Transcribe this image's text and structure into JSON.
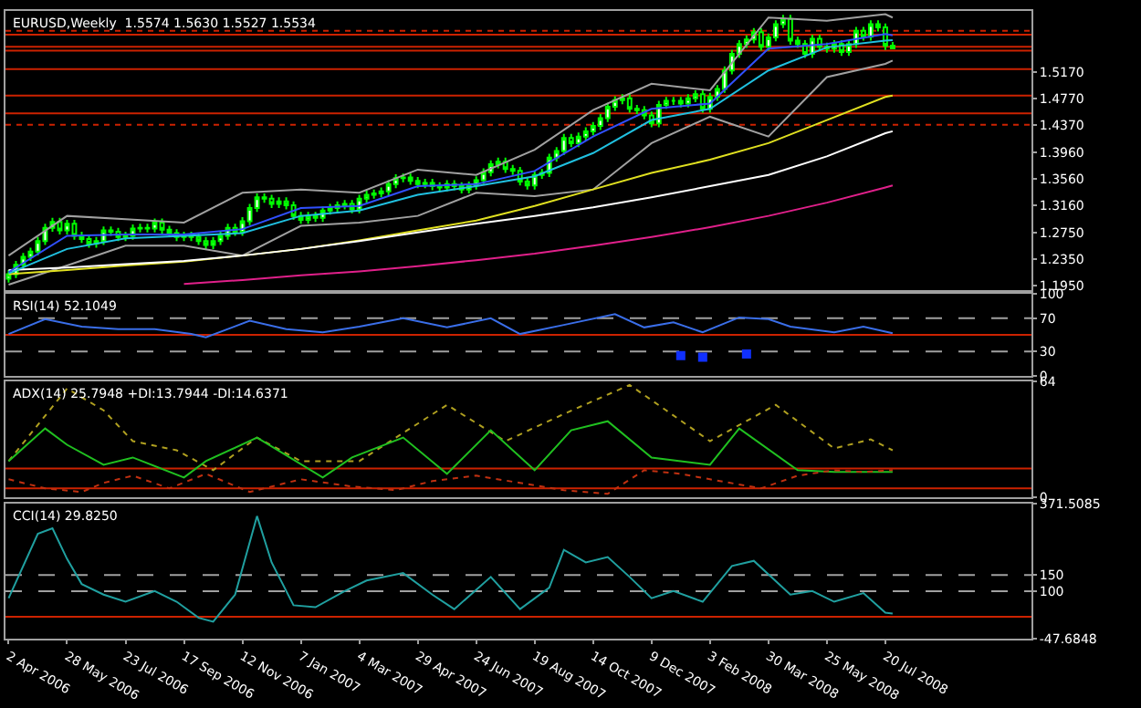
{
  "chart_data": [
    {
      "type": "candlestick",
      "title": "EURUSD,Weekly  1.5574 1.5630 1.5527 1.5534",
      "color": "#00ff00",
      "tick_labels": "y",
      "xlim": [
        "2006-03-30",
        "2008-12-07"
      ],
      "ylim": [
        1.1875,
        1.61
      ],
      "yticks": [
        {
          "value": 1.195,
          "label": "1.1950"
        },
        {
          "value": 1.235,
          "label": "1.2350"
        },
        {
          "value": 1.275,
          "label": "1.2750"
        },
        {
          "value": 1.316,
          "label": "1.3160"
        },
        {
          "value": 1.356,
          "label": "1.3560"
        },
        {
          "value": 1.396,
          "label": "1.3960"
        },
        {
          "value": 1.437,
          "label": "1.4370"
        },
        {
          "value": 1.477,
          "label": "1.4770"
        },
        {
          "value": 1.517,
          "label": "1.5170"
        }
      ],
      "x": [
        "2006-04-02",
        "2006-04-09",
        "2006-04-16",
        "2006-04-23",
        "2006-04-30",
        "2006-05-07",
        "2006-05-14",
        "2006-05-21",
        "2006-05-28",
        "2006-06-04",
        "2006-06-11",
        "2006-06-18",
        "2006-06-25",
        "2006-07-02",
        "2006-07-09",
        "2006-07-16",
        "2006-07-23",
        "2006-07-30",
        "2006-08-06",
        "2006-08-13",
        "2006-08-20",
        "2006-08-27",
        "2006-09-03",
        "2006-09-10",
        "2006-09-17",
        "2006-09-24",
        "2006-10-01",
        "2006-10-08",
        "2006-10-15",
        "2006-10-22",
        "2006-10-29",
        "2006-11-05",
        "2006-11-12",
        "2006-11-19",
        "2006-11-26",
        "2006-12-03",
        "2006-12-10",
        "2006-12-17",
        "2006-12-24",
        "2006-12-31",
        "2007-01-07",
        "2007-01-14",
        "2007-01-21",
        "2007-01-28",
        "2007-02-04",
        "2007-02-11",
        "2007-02-18",
        "2007-02-25",
        "2007-03-04",
        "2007-03-11",
        "2007-03-18",
        "2007-03-25",
        "2007-04-01",
        "2007-04-08",
        "2007-04-15",
        "2007-04-22",
        "2007-04-29",
        "2007-05-06",
        "2007-05-13",
        "2007-05-20",
        "2007-05-27",
        "2007-06-03",
        "2007-06-10",
        "2007-06-17",
        "2007-06-24",
        "2007-07-01",
        "2007-07-08",
        "2007-07-15",
        "2007-07-22",
        "2007-07-29",
        "2007-08-05",
        "2007-08-12",
        "2007-08-19",
        "2007-08-26",
        "2007-09-02",
        "2007-09-09",
        "2007-09-16",
        "2007-09-23",
        "2007-09-30",
        "2007-10-07",
        "2007-10-14",
        "2007-10-21",
        "2007-10-28",
        "2007-11-04",
        "2007-11-11",
        "2007-11-18",
        "2007-11-25",
        "2007-12-02",
        "2007-12-09",
        "2007-12-16",
        "2007-12-23",
        "2007-12-30",
        "2008-01-06",
        "2008-01-13",
        "2008-01-20",
        "2008-01-27",
        "2008-02-03",
        "2008-02-10",
        "2008-02-17",
        "2008-02-24",
        "2008-03-02",
        "2008-03-09",
        "2008-03-16",
        "2008-03-23",
        "2008-03-30",
        "2008-04-06",
        "2008-04-13",
        "2008-04-20",
        "2008-04-27",
        "2008-05-04",
        "2008-05-11",
        "2008-05-18",
        "2008-05-25",
        "2008-06-01",
        "2008-06-08",
        "2008-06-15",
        "2008-06-22",
        "2008-06-29",
        "2008-07-06",
        "2008-07-13",
        "2008-07-20",
        "2008-07-27"
      ],
      "ohlc": [
        [
          1.205,
          1.218,
          1.199,
          1.212
        ],
        [
          1.212,
          1.232,
          1.206,
          1.226
        ],
        [
          1.226,
          1.244,
          1.22,
          1.238
        ],
        [
          1.238,
          1.252,
          1.232,
          1.246
        ],
        [
          1.246,
          1.268,
          1.24,
          1.262
        ],
        [
          1.262,
          1.288,
          1.256,
          1.282
        ],
        [
          1.282,
          1.297,
          1.276,
          1.291
        ],
        [
          1.291,
          1.297,
          1.272,
          1.278
        ],
        [
          1.278,
          1.294,
          1.272,
          1.288
        ],
        [
          1.288,
          1.294,
          1.264,
          1.27
        ],
        [
          1.27,
          1.276,
          1.259,
          1.265
        ],
        [
          1.265,
          1.271,
          1.252,
          1.258
        ],
        [
          1.258,
          1.268,
          1.252,
          1.262
        ],
        [
          1.262,
          1.284,
          1.256,
          1.278
        ],
        [
          1.278,
          1.284,
          1.27,
          1.276
        ],
        [
          1.276,
          1.282,
          1.262,
          1.268
        ],
        [
          1.268,
          1.276,
          1.262,
          1.27
        ],
        [
          1.27,
          1.287,
          1.264,
          1.281
        ],
        [
          1.281,
          1.288,
          1.275,
          1.282
        ],
        [
          1.282,
          1.288,
          1.275,
          1.281
        ],
        [
          1.281,
          1.296,
          1.275,
          1.29
        ],
        [
          1.29,
          1.296,
          1.273,
          1.279
        ],
        [
          1.279,
          1.285,
          1.268,
          1.274
        ],
        [
          1.274,
          1.28,
          1.262,
          1.268
        ],
        [
          1.268,
          1.276,
          1.262,
          1.27
        ],
        [
          1.27,
          1.276,
          1.262,
          1.268
        ],
        [
          1.268,
          1.274,
          1.256,
          1.262
        ],
        [
          1.262,
          1.268,
          1.25,
          1.256
        ],
        [
          1.256,
          1.268,
          1.25,
          1.262
        ],
        [
          1.262,
          1.276,
          1.256,
          1.27
        ],
        [
          1.27,
          1.288,
          1.264,
          1.282
        ],
        [
          1.282,
          1.288,
          1.27,
          1.276
        ],
        [
          1.276,
          1.298,
          1.27,
          1.292
        ],
        [
          1.292,
          1.318,
          1.286,
          1.312
        ],
        [
          1.312,
          1.334,
          1.306,
          1.328
        ],
        [
          1.328,
          1.334,
          1.32,
          1.326
        ],
        [
          1.326,
          1.332,
          1.312,
          1.318
        ],
        [
          1.318,
          1.328,
          1.312,
          1.322
        ],
        [
          1.322,
          1.328,
          1.31,
          1.316
        ],
        [
          1.316,
          1.322,
          1.294,
          1.3
        ],
        [
          1.3,
          1.306,
          1.288,
          1.294
        ],
        [
          1.294,
          1.306,
          1.288,
          1.3
        ],
        [
          1.3,
          1.306,
          1.291,
          1.297
        ],
        [
          1.297,
          1.314,
          1.291,
          1.308
        ],
        [
          1.308,
          1.318,
          1.302,
          1.312
        ],
        [
          1.312,
          1.322,
          1.306,
          1.316
        ],
        [
          1.316,
          1.324,
          1.31,
          1.318
        ],
        [
          1.318,
          1.324,
          1.304,
          1.31
        ],
        [
          1.31,
          1.332,
          1.304,
          1.326
        ],
        [
          1.326,
          1.338,
          1.32,
          1.332
        ],
        [
          1.332,
          1.34,
          1.326,
          1.334
        ],
        [
          1.334,
          1.343,
          1.328,
          1.337
        ],
        [
          1.337,
          1.354,
          1.331,
          1.348
        ],
        [
          1.348,
          1.363,
          1.342,
          1.357
        ],
        [
          1.357,
          1.364,
          1.351,
          1.358
        ],
        [
          1.358,
          1.364,
          1.347,
          1.353
        ],
        [
          1.353,
          1.359,
          1.342,
          1.348
        ],
        [
          1.348,
          1.356,
          1.342,
          1.35
        ],
        [
          1.35,
          1.356,
          1.339,
          1.345
        ],
        [
          1.345,
          1.351,
          1.337,
          1.343
        ],
        [
          1.343,
          1.354,
          1.337,
          1.348
        ],
        [
          1.348,
          1.354,
          1.339,
          1.345
        ],
        [
          1.345,
          1.351,
          1.334,
          1.34
        ],
        [
          1.34,
          1.352,
          1.334,
          1.346
        ],
        [
          1.346,
          1.36,
          1.34,
          1.354
        ],
        [
          1.354,
          1.372,
          1.348,
          1.366
        ],
        [
          1.366,
          1.384,
          1.36,
          1.378
        ],
        [
          1.378,
          1.388,
          1.372,
          1.382
        ],
        [
          1.382,
          1.388,
          1.365,
          1.371
        ],
        [
          1.371,
          1.377,
          1.362,
          1.368
        ],
        [
          1.368,
          1.374,
          1.346,
          1.352
        ],
        [
          1.352,
          1.358,
          1.34,
          1.346
        ],
        [
          1.346,
          1.368,
          1.34,
          1.362
        ],
        [
          1.362,
          1.371,
          1.356,
          1.365
        ],
        [
          1.365,
          1.394,
          1.359,
          1.388
        ],
        [
          1.388,
          1.404,
          1.382,
          1.398
        ],
        [
          1.398,
          1.424,
          1.392,
          1.418
        ],
        [
          1.418,
          1.424,
          1.404,
          1.41
        ],
        [
          1.41,
          1.426,
          1.404,
          1.42
        ],
        [
          1.42,
          1.434,
          1.414,
          1.428
        ],
        [
          1.428,
          1.442,
          1.422,
          1.436
        ],
        [
          1.436,
          1.454,
          1.43,
          1.448
        ],
        [
          1.448,
          1.471,
          1.442,
          1.465
        ],
        [
          1.465,
          1.481,
          1.459,
          1.475
        ],
        [
          1.475,
          1.484,
          1.469,
          1.478
        ],
        [
          1.478,
          1.484,
          1.456,
          1.462
        ],
        [
          1.462,
          1.468,
          1.454,
          1.46
        ],
        [
          1.46,
          1.466,
          1.446,
          1.452
        ],
        [
          1.452,
          1.458,
          1.434,
          1.44
        ],
        [
          1.44,
          1.474,
          1.434,
          1.468
        ],
        [
          1.468,
          1.48,
          1.462,
          1.474
        ],
        [
          1.474,
          1.48,
          1.468,
          1.474
        ],
        [
          1.474,
          1.48,
          1.464,
          1.47
        ],
        [
          1.47,
          1.484,
          1.464,
          1.478
        ],
        [
          1.478,
          1.49,
          1.472,
          1.484
        ],
        [
          1.484,
          1.49,
          1.456,
          1.462
        ],
        [
          1.462,
          1.486,
          1.456,
          1.48
        ],
        [
          1.48,
          1.498,
          1.474,
          1.492
        ],
        [
          1.492,
          1.526,
          1.486,
          1.52
        ],
        [
          1.52,
          1.551,
          1.514,
          1.545
        ],
        [
          1.545,
          1.566,
          1.539,
          1.56
        ],
        [
          1.56,
          1.573,
          1.554,
          1.567
        ],
        [
          1.567,
          1.584,
          1.561,
          1.578
        ],
        [
          1.578,
          1.584,
          1.55,
          1.556
        ],
        [
          1.556,
          1.576,
          1.55,
          1.57
        ],
        [
          1.57,
          1.596,
          1.564,
          1.59
        ],
        [
          1.59,
          1.604,
          1.584,
          1.598
        ],
        [
          1.598,
          1.604,
          1.559,
          1.565
        ],
        [
          1.565,
          1.571,
          1.554,
          1.56
        ],
        [
          1.56,
          1.566,
          1.539,
          1.545
        ],
        [
          1.545,
          1.574,
          1.539,
          1.568
        ],
        [
          1.568,
          1.574,
          1.55,
          1.556
        ],
        [
          1.556,
          1.562,
          1.547,
          1.553
        ],
        [
          1.553,
          1.566,
          1.547,
          1.56
        ],
        [
          1.56,
          1.566,
          1.542,
          1.548
        ],
        [
          1.548,
          1.566,
          1.542,
          1.56
        ],
        [
          1.56,
          1.586,
          1.554,
          1.58
        ],
        [
          1.58,
          1.586,
          1.565,
          1.571
        ],
        [
          1.571,
          1.596,
          1.565,
          1.59
        ],
        [
          1.59,
          1.596,
          1.579,
          1.585
        ],
        [
          1.585,
          1.591,
          1.551,
          1.5574
        ],
        [
          1.5574,
          1.563,
          1.5527,
          1.5534
        ]
      ],
      "series": [
        {
          "type": "line",
          "color": "#a0a0a0",
          "x": [
            "2006-04-02",
            "2006-05-28",
            "2006-07-23",
            "2006-09-17",
            "2006-11-12",
            "2007-01-07",
            "2007-03-04",
            "2007-04-29",
            "2007-06-24",
            "2007-08-19",
            "2007-10-14",
            "2007-12-09",
            "2008-02-03",
            "2008-03-30",
            "2008-05-25",
            "2008-07-20",
            "2008-07-27"
          ],
          "values": [
            1.24,
            1.3,
            1.295,
            1.29,
            1.335,
            1.34,
            1.335,
            1.37,
            1.362,
            1.4,
            1.46,
            1.5,
            1.49,
            1.6,
            1.595,
            1.605,
            1.6
          ]
        },
        {
          "type": "line",
          "color": "#a0a0a0",
          "x": [
            "2006-04-02",
            "2006-05-28",
            "2006-07-23",
            "2006-09-17",
            "2006-11-12",
            "2007-01-07",
            "2007-03-04",
            "2007-04-29",
            "2007-06-24",
            "2007-08-19",
            "2007-10-14",
            "2007-12-09",
            "2008-02-03",
            "2008-03-30",
            "2008-05-25",
            "2008-07-20",
            "2008-07-27"
          ],
          "values": [
            1.196,
            1.225,
            1.255,
            1.255,
            1.24,
            1.285,
            1.29,
            1.3,
            1.335,
            1.33,
            1.34,
            1.41,
            1.45,
            1.42,
            1.51,
            1.53,
            1.535
          ]
        },
        {
          "type": "line",
          "color": "#e0e020",
          "x": [
            "2006-04-02",
            "2006-05-28",
            "2006-07-23",
            "2006-09-17",
            "2006-11-12",
            "2007-01-07",
            "2007-03-04",
            "2007-04-29",
            "2007-06-24",
            "2007-08-19",
            "2007-10-14",
            "2007-12-09",
            "2008-02-03",
            "2008-03-30",
            "2008-05-25",
            "2008-07-20",
            "2008-07-27"
          ],
          "values": [
            1.212,
            1.218,
            1.225,
            1.231,
            1.24,
            1.25,
            1.263,
            1.278,
            1.293,
            1.315,
            1.34,
            1.365,
            1.385,
            1.41,
            1.445,
            1.48,
            1.482
          ]
        },
        {
          "type": "line",
          "color": "#ffffff",
          "x": [
            "2006-04-02",
            "2006-05-28",
            "2006-07-23",
            "2006-09-17",
            "2006-11-12",
            "2007-01-07",
            "2007-03-04",
            "2007-04-29",
            "2007-06-24",
            "2007-08-19",
            "2007-10-14",
            "2007-12-09",
            "2008-02-03",
            "2008-03-30",
            "2008-05-25",
            "2008-07-20",
            "2008-07-27"
          ],
          "values": [
            1.218,
            1.222,
            1.227,
            1.232,
            1.24,
            1.25,
            1.262,
            1.275,
            1.288,
            1.3,
            1.313,
            1.328,
            1.345,
            1.362,
            1.39,
            1.425,
            1.428
          ]
        },
        {
          "type": "line",
          "color": "#e0208a",
          "x": [
            "2006-09-17",
            "2006-11-12",
            "2007-01-07",
            "2007-03-04",
            "2007-04-29",
            "2007-06-24",
            "2007-08-19",
            "2007-10-14",
            "2007-12-09",
            "2008-02-03",
            "2008-03-30",
            "2008-05-25",
            "2008-07-20",
            "2008-07-27"
          ],
          "values": [
            1.197,
            1.203,
            1.21,
            1.216,
            1.224,
            1.233,
            1.243,
            1.255,
            1.268,
            1.283,
            1.3,
            1.32,
            1.343,
            1.346
          ]
        },
        {
          "type": "line",
          "color": "#20c0e0",
          "x": [
            "2006-04-02",
            "2006-05-28",
            "2006-07-23",
            "2006-09-17",
            "2006-11-12",
            "2007-01-07",
            "2007-03-04",
            "2007-04-29",
            "2007-06-24",
            "2007-08-19",
            "2007-10-14",
            "2007-12-09",
            "2008-02-03",
            "2008-03-30",
            "2008-05-25",
            "2008-07-20",
            "2008-07-27"
          ],
          "values": [
            1.213,
            1.25,
            1.266,
            1.27,
            1.274,
            1.3,
            1.308,
            1.332,
            1.345,
            1.36,
            1.395,
            1.445,
            1.462,
            1.52,
            1.555,
            1.565,
            1.566
          ]
        },
        {
          "type": "line",
          "color": "#3050ff",
          "x": [
            "2006-04-02",
            "2006-05-28",
            "2006-07-23",
            "2006-09-17",
            "2006-11-12",
            "2007-01-07",
            "2007-03-04",
            "2007-04-29",
            "2007-06-24",
            "2007-08-19",
            "2007-10-14",
            "2007-12-09",
            "2008-02-03",
            "2008-03-30",
            "2008-05-25",
            "2008-07-20",
            "2008-07-27"
          ],
          "values": [
            1.215,
            1.27,
            1.272,
            1.272,
            1.28,
            1.312,
            1.315,
            1.345,
            1.348,
            1.368,
            1.42,
            1.462,
            1.47,
            1.553,
            1.56,
            1.575,
            1.573
          ]
        }
      ],
      "ref_lines": [
        {
          "axis": "y",
          "value": 1.58,
          "color": "#cc2200",
          "line_style": "dotted"
        },
        {
          "axis": "y",
          "value": 1.574,
          "color": "#cc2200"
        },
        {
          "axis": "y",
          "value": 1.556,
          "color": "#cc2200"
        },
        {
          "axis": "y",
          "value": 1.55,
          "color": "#cc2200"
        },
        {
          "axis": "y",
          "value": 1.522,
          "color": "#cc2200"
        },
        {
          "axis": "y",
          "value": 1.482,
          "color": "#cc2200"
        },
        {
          "axis": "y",
          "value": 1.455,
          "color": "#cc2200"
        },
        {
          "axis": "y",
          "value": 1.438,
          "color": "#cc2200",
          "line_style": "dotted"
        }
      ]
    },
    {
      "type": "line",
      "title": "RSI(14) 52.1049",
      "tick_labels": "y",
      "xlim": [
        "2006-03-30",
        "2008-12-07"
      ],
      "ylim": [
        0,
        100
      ],
      "yticks": [
        0,
        30,
        70,
        100
      ],
      "series": [
        {
          "color": "#3a6ee8",
          "x": [
            "2006-04-02",
            "2006-05-07",
            "2006-06-11",
            "2006-07-16",
            "2006-08-20",
            "2006-09-24",
            "2006-10-08",
            "2006-11-19",
            "2006-12-24",
            "2007-01-28",
            "2007-03-04",
            "2007-04-15",
            "2007-05-27",
            "2007-07-08",
            "2007-08-05",
            "2007-09-16",
            "2007-11-04",
            "2007-12-02",
            "2007-12-30",
            "2008-01-27",
            "2008-03-02",
            "2008-03-30",
            "2008-04-20",
            "2008-06-01",
            "2008-06-29",
            "2008-07-27"
          ],
          "values": [
            51,
            69,
            60,
            57,
            57,
            51,
            47,
            67,
            57,
            53,
            60,
            70,
            59,
            70,
            51,
            62,
            75,
            59,
            65,
            53,
            71,
            69,
            60,
            53,
            60,
            52
          ]
        },
        {
          "type": "scatter",
          "marker": "square",
          "color": "#1030ff",
          "x": [
            "2008-01-06",
            "2008-01-27",
            "2008-03-09"
          ],
          "values": [
            25,
            23,
            27
          ]
        }
      ],
      "ref_lines": [
        {
          "axis": "y",
          "value": 70,
          "color": "#a0a0a0",
          "line_style": "dashed"
        },
        {
          "axis": "y",
          "value": 30,
          "color": "#a0a0a0",
          "line_style": "dashed"
        },
        {
          "axis": "y",
          "value": 50,
          "color": "#cc2200"
        }
      ]
    },
    {
      "type": "line",
      "title": "ADX(14) 25.7948 +DI:13.7944 -DI:14.6371",
      "tick_labels": "y",
      "xlim": [
        "2006-03-30",
        "2008-12-07"
      ],
      "ylim": [
        0,
        64
      ],
      "yticks": [
        0,
        64
      ],
      "series": [
        {
          "color": "#b0a020",
          "line_style": "dotted",
          "x": [
            "2006-04-02",
            "2006-05-28",
            "2006-07-02",
            "2006-07-30",
            "2006-09-10",
            "2006-10-15",
            "2006-11-26",
            "2007-01-07",
            "2007-03-04",
            "2007-05-27",
            "2007-07-22",
            "2007-09-16",
            "2007-11-18",
            "2007-12-23",
            "2008-02-03",
            "2008-04-06",
            "2008-06-01",
            "2008-07-06",
            "2008-07-27"
          ],
          "values": [
            20,
            60,
            48,
            31,
            26,
            15,
            33,
            20,
            20,
            51,
            31,
            46,
            62,
            48,
            31,
            51,
            27,
            32,
            26
          ]
        },
        {
          "color": "#20c020",
          "x": [
            "2006-04-02",
            "2006-05-07",
            "2006-05-28",
            "2006-07-02",
            "2006-07-30",
            "2006-09-17",
            "2006-10-08",
            "2006-11-26",
            "2007-01-28",
            "2007-02-25",
            "2007-04-15",
            "2007-05-27",
            "2007-07-08",
            "2007-08-19",
            "2007-09-23",
            "2007-10-28",
            "2007-12-09",
            "2008-02-03",
            "2008-03-02",
            "2008-04-27",
            "2008-06-01",
            "2008-07-27"
          ],
          "values": [
            20,
            38,
            29,
            18,
            22,
            11,
            20,
            33,
            11,
            22,
            33,
            13,
            37,
            15,
            37,
            42,
            22,
            18,
            38,
            15,
            14,
            14
          ]
        },
        {
          "color": "#c03010",
          "line_style": "dotted",
          "x": [
            "2006-04-02",
            "2006-05-07",
            "2006-06-11",
            "2006-07-02",
            "2006-07-30",
            "2006-09-03",
            "2006-10-08",
            "2006-11-19",
            "2007-01-07",
            "2007-02-25",
            "2007-04-08",
            "2007-05-13",
            "2007-06-24",
            "2007-08-05",
            "2007-09-16",
            "2007-10-28",
            "2007-12-02",
            "2008-01-06",
            "2008-02-03",
            "2008-03-23",
            "2008-04-27",
            "2008-06-01",
            "2008-06-29",
            "2008-07-27"
          ],
          "values": [
            10,
            5,
            3,
            8,
            12,
            5,
            13,
            3,
            10,
            6,
            4,
            9,
            12,
            8,
            4,
            2,
            15,
            13,
            10,
            5,
            12,
            15,
            14,
            15
          ]
        }
      ],
      "ref_lines": [
        {
          "axis": "y",
          "value": 16,
          "color": "#cc2200"
        },
        {
          "axis": "y",
          "value": 5,
          "color": "#cc2200"
        }
      ]
    },
    {
      "type": "line",
      "title": "CCI(14) 29.8250",
      "xlim": [
        "2006-03-30",
        "2008-12-07"
      ],
      "ylim": [
        -47.6848,
        371.5085
      ],
      "yticks": [
        {
          "value": -47.6848,
          "label": "-47.6848"
        },
        100,
        150,
        {
          "value": 371.5085,
          "label": "371.5085"
        }
      ],
      "xticks": [
        {
          "value": "2006-04-02",
          "label": "2 Apr 2006"
        },
        {
          "value": "2006-05-28",
          "label": "28 May 2006"
        },
        {
          "value": "2006-07-23",
          "label": "23 Jul 2006"
        },
        {
          "value": "2006-09-17",
          "label": "17 Sep 2006"
        },
        {
          "value": "2006-11-12",
          "label": "12 Nov 2006"
        },
        {
          "value": "2007-01-07",
          "label": "7 Jan 2007"
        },
        {
          "value": "2007-03-04",
          "label": "4 Mar 2007"
        },
        {
          "value": "2007-04-29",
          "label": "29 Apr 2007"
        },
        {
          "value": "2007-06-24",
          "label": "24 Jun 2007"
        },
        {
          "value": "2007-08-19",
          "label": "19 Aug 2007"
        },
        {
          "value": "2007-10-14",
          "label": "14 Oct 2007"
        },
        {
          "value": "2007-12-09",
          "label": "9 Dec 2007"
        },
        {
          "value": "2008-02-03",
          "label": "3 Feb 2008"
        },
        {
          "value": "2008-03-30",
          "label": "30 Mar 2008"
        },
        {
          "value": "2008-05-25",
          "label": "25 May 2008"
        },
        {
          "value": "2008-07-20",
          "label": "20 Jul 2008"
        }
      ],
      "series": [
        {
          "color": "#20a0a0",
          "x": [
            "2006-04-02",
            "2006-04-30",
            "2006-05-14",
            "2006-05-28",
            "2006-06-11",
            "2006-07-02",
            "2006-07-23",
            "2006-08-20",
            "2006-09-10",
            "2006-10-01",
            "2006-10-15",
            "2006-11-05",
            "2006-11-26",
            "2006-12-10",
            "2006-12-31",
            "2007-01-21",
            "2007-02-18",
            "2007-03-11",
            "2007-04-15",
            "2007-05-13",
            "2007-06-03",
            "2007-07-08",
            "2007-08-05",
            "2007-09-02",
            "2007-09-16",
            "2007-10-07",
            "2007-10-28",
            "2007-11-18",
            "2007-12-09",
            "2007-12-30",
            "2008-01-27",
            "2008-02-24",
            "2008-03-16",
            "2008-04-20",
            "2008-05-11",
            "2008-06-01",
            "2008-06-29",
            "2008-07-20",
            "2008-07-27"
          ],
          "values": [
            78,
            278,
            295,
            200,
            122,
            89,
            67,
            100,
            67,
            17,
            5,
            89,
            333,
            189,
            56,
            50,
            100,
            133,
            156,
            89,
            44,
            144,
            44,
            111,
            228,
            189,
            206,
            144,
            78,
            100,
            67,
            178,
            194,
            89,
            100,
            67,
            94,
            33,
            30
          ]
        }
      ],
      "ref_lines": [
        {
          "axis": "y",
          "value": 150,
          "color": "#a0a0a0",
          "line_style": "dashed"
        },
        {
          "axis": "y",
          "value": 100,
          "color": "#a0a0a0",
          "line_style": "dashed"
        },
        {
          "axis": "y",
          "value": 20,
          "color": "#cc2200"
        }
      ]
    }
  ]
}
